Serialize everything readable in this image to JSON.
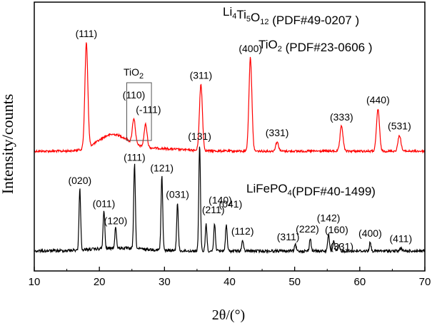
{
  "chart_data": {
    "type": "line",
    "xlabel": "2θ/(°)",
    "ylabel": "Intensity/counts",
    "xlim": [
      10,
      70
    ],
    "x_ticks": [
      "10",
      "20",
      "30",
      "40",
      "50",
      "60",
      "70"
    ],
    "y_ticks_shown": false,
    "legend_texts": [
      {
        "main": "Li",
        "s1": "4",
        "m2": "Ti",
        "s2": "5",
        "m3": "O",
        "s3": "12",
        "tail": " (PDF#49-0207 )"
      },
      {
        "main": "TiO",
        "s1": "2",
        "tail": " (PDF#23-0606 )"
      },
      {
        "main": "LiFePO",
        "s1": "4",
        "tail": "(PDF#40-1499)"
      }
    ],
    "inset_box_label": {
      "main": "TiO",
      "sub": "2"
    },
    "series": [
      {
        "color": "#ff0000",
        "peaks": [
          {
            "x": 18.0,
            "h": 0.92,
            "label": "(111)"
          },
          {
            "x": 25.3,
            "h": 0.22,
            "label": "(110)"
          },
          {
            "x": 27.1,
            "h": 0.2,
            "label": "(-111)"
          },
          {
            "x": 35.6,
            "h": 0.58,
            "label": "(311)"
          },
          {
            "x": 43.2,
            "h": 0.82,
            "label": "(400)"
          },
          {
            "x": 47.3,
            "h": 0.08,
            "label": "(331)"
          },
          {
            "x": 57.2,
            "h": 0.22,
            "label": "(333)"
          },
          {
            "x": 62.8,
            "h": 0.37,
            "label": "(440)"
          },
          {
            "x": 66.1,
            "h": 0.14,
            "label": "(531)"
          }
        ]
      },
      {
        "color": "#000000",
        "peaks": [
          {
            "x": 17.0,
            "h": 0.58,
            "label": "(020)"
          },
          {
            "x": 20.7,
            "h": 0.36,
            "label": "(011)"
          },
          {
            "x": 22.5,
            "h": 0.2,
            "label": "(120)"
          },
          {
            "x": 25.4,
            "h": 0.8,
            "label": "(111)"
          },
          {
            "x": 29.6,
            "h": 0.7,
            "label": "(121)"
          },
          {
            "x": 32.0,
            "h": 0.45,
            "label": "(031)"
          },
          {
            "x": 35.4,
            "h": 1.0,
            "label": "(131)"
          },
          {
            "x": 36.4,
            "h": 0.25,
            "label": "(211)"
          },
          {
            "x": 37.7,
            "h": 0.26,
            "label": "(140)"
          },
          {
            "x": 39.5,
            "h": 0.25,
            "label": "(041)"
          },
          {
            "x": 42.0,
            "h": 0.1,
            "label": "(112)"
          },
          {
            "x": 50.1,
            "h": 0.06,
            "label": "(311)"
          },
          {
            "x": 52.4,
            "h": 0.12,
            "label": "(222)"
          },
          {
            "x": 55.2,
            "h": 0.16,
            "label": "(142)"
          },
          {
            "x": 56.0,
            "h": 0.1,
            "label": "(160)"
          },
          {
            "x": 56.8,
            "h": 0.05,
            "label": "(331)"
          },
          {
            "x": 61.6,
            "h": 0.08,
            "label": "(400)"
          },
          {
            "x": 66.3,
            "h": 0.03,
            "label": "(411)"
          }
        ]
      }
    ]
  }
}
